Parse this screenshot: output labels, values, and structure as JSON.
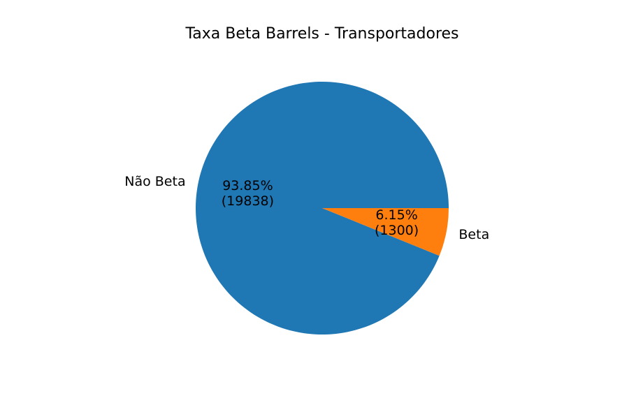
{
  "chart_data": {
    "type": "pie",
    "title": "Taxa Beta Barrels - Transportadores",
    "slices": [
      {
        "label": "Não Beta",
        "value": 19838,
        "percent_label": "93.85%",
        "count_label": "(19838)",
        "color": "#1f77b4"
      },
      {
        "label": "Beta",
        "value": 1300,
        "percent_label": "6.15%",
        "count_label": "(1300)",
        "color": "#ff7f0e"
      }
    ],
    "start_angle_deg": 0,
    "direction": "counterclockwise"
  }
}
